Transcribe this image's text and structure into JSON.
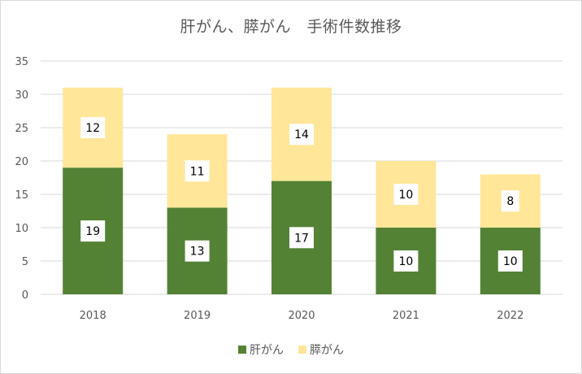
{
  "chart_data": {
    "type": "bar",
    "stacked": true,
    "title": "肝がん、膵がん　手術件数推移",
    "categories": [
      "2018",
      "2019",
      "2020",
      "2021",
      "2022"
    ],
    "series": [
      {
        "name": "肝がん",
        "values": [
          19,
          13,
          17,
          10,
          10
        ],
        "color": "#548235"
      },
      {
        "name": "膵がん",
        "values": [
          12,
          11,
          14,
          10,
          8
        ],
        "color": "#ffe699"
      }
    ],
    "ylim": [
      0,
      35
    ],
    "yticks": [
      0,
      5,
      10,
      15,
      20,
      25,
      30,
      35
    ],
    "grid": true,
    "legend_position": "bottom",
    "xlabel": "",
    "ylabel": ""
  }
}
